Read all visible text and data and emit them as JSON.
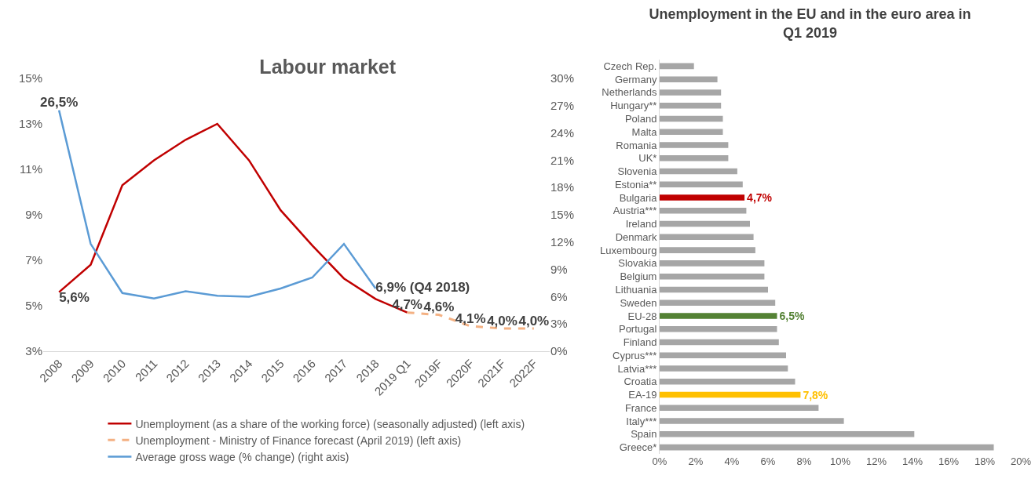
{
  "chart_data": [
    {
      "type": "line",
      "title": "Labour market",
      "categories": [
        "2008",
        "2009",
        "2010",
        "2011",
        "2012",
        "2013",
        "2014",
        "2015",
        "2016",
        "2017",
        "2018",
        "2019 Q1",
        "2019F",
        "2020F",
        "2021F",
        "2022F"
      ],
      "series": [
        {
          "name": "Unemployment (as a share of the working force) (seasonally adjusted) (left axis)",
          "color": "#c00000",
          "line_style": "solid",
          "values": [
            5.6,
            6.8,
            10.3,
            11.4,
            12.3,
            13.0,
            11.4,
            9.2,
            7.65,
            6.2,
            5.3,
            4.7,
            null,
            null,
            null,
            null
          ],
          "value_labels": [
            "5,6%",
            null,
            null,
            null,
            null,
            null,
            null,
            null,
            null,
            null,
            null,
            "4,7%",
            null,
            null,
            null,
            null
          ]
        },
        {
          "name": "Unemployment - Ministry of Finance forecast (April 2019) (left axis)",
          "color": "#f4b183",
          "line_style": "dashed",
          "values": [
            null,
            null,
            null,
            null,
            null,
            null,
            null,
            null,
            null,
            null,
            null,
            4.7,
            4.6,
            4.1,
            4.0,
            4.0
          ],
          "value_labels": [
            null,
            null,
            null,
            null,
            null,
            null,
            null,
            null,
            null,
            null,
            null,
            null,
            "4,6%",
            "4,1%",
            "4,0%",
            "4,0%"
          ]
        },
        {
          "name": "Average gross wage (% change) (right axis)",
          "color": "#5b9bd5",
          "line_style": "solid",
          "axis": "y2",
          "values": [
            26.5,
            11.8,
            6.4,
            5.8,
            6.6,
            6.1,
            6.0,
            6.9,
            8.1,
            11.8,
            6.9,
            null,
            null,
            null,
            null,
            null
          ],
          "value_labels": [
            "26,5%",
            null,
            null,
            null,
            null,
            null,
            null,
            null,
            null,
            null,
            "6,9% (Q4 2018)",
            null,
            null,
            null,
            null,
            null
          ]
        }
      ],
      "ylim": [
        3,
        15
      ],
      "yticks": [
        {
          "value": 3,
          "label": "3%"
        },
        {
          "value": 5,
          "label": "5%"
        },
        {
          "value": 7,
          "label": "7%"
        },
        {
          "value": 9,
          "label": "9%"
        },
        {
          "value": 11,
          "label": "11%"
        },
        {
          "value": 13,
          "label": "13%"
        },
        {
          "value": 15,
          "label": "15%"
        }
      ],
      "y2lim": [
        0,
        30
      ],
      "y2ticks": [
        {
          "value": 0,
          "label": "0%"
        },
        {
          "value": 3,
          "label": "3%"
        },
        {
          "value": 6,
          "label": "6%"
        },
        {
          "value": 9,
          "label": "9%"
        },
        {
          "value": 12,
          "label": "12%"
        },
        {
          "value": 15,
          "label": "15%"
        },
        {
          "value": 18,
          "label": "18%"
        },
        {
          "value": 21,
          "label": "21%"
        },
        {
          "value": 24,
          "label": "24%"
        },
        {
          "value": 27,
          "label": "27%"
        },
        {
          "value": 30,
          "label": "30%"
        }
      ],
      "grid": false,
      "marker": "none",
      "legend": "bottom"
    },
    {
      "type": "bar",
      "orientation": "horizontal",
      "title": "Unemployment in the EU and in the euro area in Q1 2019",
      "categories": [
        "Czech Rep.",
        "Germany",
        "Netherlands",
        "Hungary**",
        "Poland",
        "Malta",
        "Romania",
        "UK*",
        "Slovenia",
        "Estonia**",
        "Bulgaria",
        "Austria***",
        "Ireland",
        "Denmark",
        "Luxembourg",
        "Slovakia",
        "Belgium",
        "Lithuania",
        "Sweden",
        "EU-28",
        "Portugal",
        "Finland",
        "Cyprus***",
        "Latvia***",
        "Croatia",
        "EA-19",
        "France",
        "Italy***",
        "Spain",
        "Greece*"
      ],
      "values": [
        1.9,
        3.2,
        3.4,
        3.4,
        3.5,
        3.5,
        3.8,
        3.8,
        4.3,
        4.6,
        4.7,
        4.8,
        5.0,
        5.2,
        5.3,
        5.8,
        5.8,
        6.0,
        6.4,
        6.5,
        6.5,
        6.6,
        7.0,
        7.1,
        7.5,
        7.8,
        8.8,
        10.2,
        14.1,
        18.5
      ],
      "colors": [
        "#a6a6a6",
        "#a6a6a6",
        "#a6a6a6",
        "#a6a6a6",
        "#a6a6a6",
        "#a6a6a6",
        "#a6a6a6",
        "#a6a6a6",
        "#a6a6a6",
        "#a6a6a6",
        "#c00000",
        "#a6a6a6",
        "#a6a6a6",
        "#a6a6a6",
        "#a6a6a6",
        "#a6a6a6",
        "#a6a6a6",
        "#a6a6a6",
        "#a6a6a6",
        "#548235",
        "#a6a6a6",
        "#a6a6a6",
        "#a6a6a6",
        "#a6a6a6",
        "#a6a6a6",
        "#ffc000",
        "#a6a6a6",
        "#a6a6a6",
        "#a6a6a6",
        "#a6a6a6"
      ],
      "value_labels": [
        null,
        null,
        null,
        null,
        null,
        null,
        null,
        null,
        null,
        null,
        "4,7%",
        null,
        null,
        null,
        null,
        null,
        null,
        null,
        null,
        "6,5%",
        null,
        null,
        null,
        null,
        null,
        "7,8%",
        null,
        null,
        null,
        null
      ],
      "xlim": [
        0,
        20
      ],
      "xticks": [
        {
          "value": 0,
          "label": "0%"
        },
        {
          "value": 2,
          "label": "2%"
        },
        {
          "value": 4,
          "label": "4%"
        },
        {
          "value": 6,
          "label": "6%"
        },
        {
          "value": 8,
          "label": "8%"
        },
        {
          "value": 10,
          "label": "10%"
        },
        {
          "value": 12,
          "label": "12%"
        },
        {
          "value": 14,
          "label": "14%"
        },
        {
          "value": 16,
          "label": "16%"
        },
        {
          "value": 18,
          "label": "18%"
        },
        {
          "value": 20,
          "label": "20%"
        }
      ],
      "grid": false,
      "legend": false
    }
  ]
}
